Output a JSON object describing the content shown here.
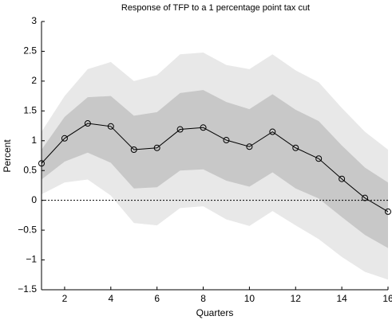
{
  "chart_data": {
    "type": "line",
    "title": "Response of TFP to a 1 percentage point tax cut",
    "x_label": "Quarters",
    "y_label": "Percent",
    "x": [
      1,
      2,
      3,
      4,
      5,
      6,
      7,
      8,
      9,
      10,
      11,
      12,
      13,
      14,
      15,
      16
    ],
    "bands": [
      {
        "color": "#e8e8e8",
        "upper": [
          1.15,
          1.75,
          2.2,
          2.32,
          2.0,
          2.1,
          2.45,
          2.48,
          2.27,
          2.2,
          2.45,
          2.18,
          1.98,
          1.55,
          1.15,
          0.85
        ],
        "lower": [
          0.1,
          0.3,
          0.35,
          0.08,
          -0.38,
          -0.42,
          -0.13,
          -0.1,
          -0.32,
          -0.43,
          -0.18,
          -0.42,
          -0.65,
          -0.95,
          -1.2,
          -1.33
        ]
      },
      {
        "color": "#c8c8c8",
        "upper": [
          0.85,
          1.4,
          1.73,
          1.75,
          1.42,
          1.48,
          1.8,
          1.85,
          1.65,
          1.53,
          1.78,
          1.52,
          1.33,
          0.92,
          0.55,
          0.3
        ],
        "lower": [
          0.35,
          0.65,
          0.8,
          0.63,
          0.2,
          0.22,
          0.5,
          0.52,
          0.33,
          0.23,
          0.47,
          0.2,
          0.03,
          -0.28,
          -0.58,
          -0.8
        ]
      }
    ],
    "series": [
      {
        "color": "#000000",
        "values": [
          0.62,
          1.04,
          1.29,
          1.24,
          0.85,
          0.88,
          1.19,
          1.22,
          1.01,
          0.9,
          1.15,
          0.88,
          0.7,
          0.36,
          0.04,
          -0.19
        ]
      }
    ],
    "hline": 0,
    "xlim": [
      1,
      16
    ],
    "xticks": [
      2,
      4,
      6,
      8,
      10,
      12,
      14,
      16
    ],
    "ylim": [
      -1.5,
      3
    ],
    "yticks": [
      {
        "value": -1.5,
        "label": "−1.5"
      },
      {
        "value": -1,
        "label": "−1"
      },
      {
        "value": -0.5,
        "label": "−0.5"
      },
      0,
      0.5,
      1,
      1.5,
      2,
      2.5,
      3
    ]
  }
}
